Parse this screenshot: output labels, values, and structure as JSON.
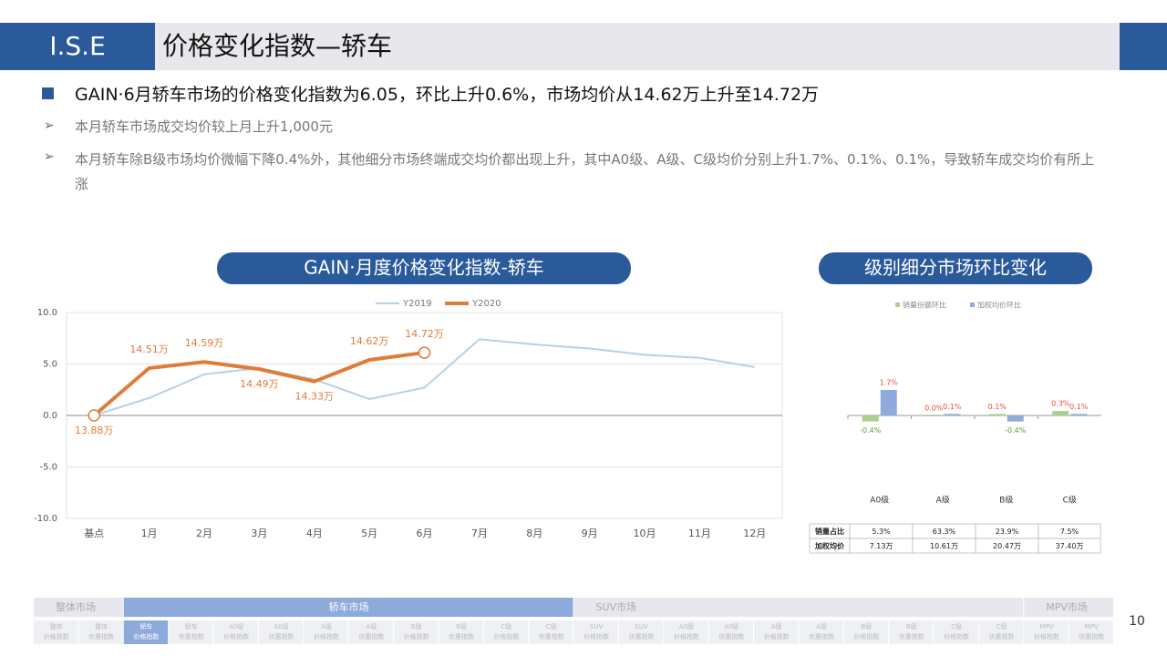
{
  "header": {
    "logo": "I.S.E",
    "title": "价格变化指数—轿车"
  },
  "bullets": {
    "main": "GAIN·6月轿车市场的价格变化指数为6.05，环比上升0.6%，市场均价从14.62万上升至14.72万",
    "subs": [
      "本月轿车市场成交均价较上月上升1,000元",
      "本月轿车除B级市场均价微幅下降0.4%外，其他细分市场终端成交均价都出现上升，其中A0级、A级、C级均价分别上升1.7%、0.1%、0.1%，导致轿车成交均价有所上涨"
    ]
  },
  "chart_data": [
    {
      "type": "line",
      "title": "GAIN·月度价格变化指数-轿车",
      "categories": [
        "基点",
        "1月",
        "2月",
        "3月",
        "4月",
        "5月",
        "6月",
        "7月",
        "8月",
        "9月",
        "10月",
        "11月",
        "12月"
      ],
      "series": [
        {
          "name": "Y2019",
          "color": "#b7d0e8",
          "values": [
            0,
            1.7,
            4.0,
            4.6,
            3.5,
            1.6,
            2.7,
            7.4,
            6.9,
            6.5,
            5.9,
            5.6,
            4.7
          ]
        },
        {
          "name": "Y2020",
          "color": "#e07b39",
          "values": [
            0,
            4.6,
            5.2,
            4.5,
            3.3,
            5.4,
            6.1,
            null,
            null,
            null,
            null,
            null,
            null
          ]
        }
      ],
      "annotations": [
        "13.88万",
        "14.51万",
        "14.59万",
        "14.49万",
        "14.33万",
        "14.62万",
        "14.72万"
      ],
      "ylim": [
        -10,
        10
      ],
      "yticks": [
        {
          "value": -10,
          "label": "-10.0"
        },
        {
          "value": -5,
          "label": "-5.0"
        },
        {
          "value": 0,
          "label": "0.0"
        },
        {
          "value": 5,
          "label": "5.0"
        },
        {
          "value": 10,
          "label": "10.0"
        }
      ],
      "grid": true,
      "legend": "top"
    },
    {
      "type": "bar",
      "title": "级别细分市场环比变化",
      "categories": [
        "A0级",
        "A级",
        "B级",
        "C级"
      ],
      "series": [
        {
          "name": "销量份额环比",
          "color": "#a9d18e",
          "values": [
            -0.4,
            0.0,
            0.1,
            0.3
          ],
          "value_labels": [
            "-0.4%",
            "0.0%",
            "0.1%",
            "0.3%"
          ]
        },
        {
          "name": "加权均价环比",
          "color": "#8faadc",
          "values": [
            1.7,
            0.1,
            -0.4,
            0.1
          ],
          "value_labels": [
            "1.7%",
            "0.1%",
            "-0.4%",
            "0.1%"
          ]
        }
      ],
      "ylim": [
        -5,
        7
      ],
      "legend": "top"
    }
  ],
  "table": {
    "rows": [
      [
        "销量占比",
        "5.3%",
        "63.3%",
        "23.9%",
        "7.5%"
      ],
      [
        "加权均价",
        "7.13万",
        "10.61万",
        "20.47万",
        "37.40万"
      ]
    ]
  },
  "nav": {
    "groups": [
      {
        "label": "整体市场",
        "span": 2
      },
      {
        "label": "轿车市场",
        "span": 10,
        "active": true
      },
      {
        "label": "SUV市场",
        "span": 10
      },
      {
        "label": "MPV市场",
        "span": 2
      }
    ],
    "items": [
      [
        "整体",
        "价格指数"
      ],
      [
        "整体",
        "优惠指数"
      ],
      [
        "轿车",
        "价格指数"
      ],
      [
        "轿车",
        "优惠指数"
      ],
      [
        "A0级",
        "价格指数"
      ],
      [
        "A0级",
        "优惠指数"
      ],
      [
        "A级",
        "价格指数"
      ],
      [
        "A级",
        "优惠指数"
      ],
      [
        "B级",
        "价格指数"
      ],
      [
        "B级",
        "优惠指数"
      ],
      [
        "C级",
        "价格指数"
      ],
      [
        "C级",
        "优惠指数"
      ],
      [
        "SUV",
        "价格指数"
      ],
      [
        "SUV",
        "优惠指数"
      ],
      [
        "A0级",
        "价格指数"
      ],
      [
        "A0级",
        "优惠指数"
      ],
      [
        "A级",
        "价格指数"
      ],
      [
        "A级",
        "优惠指数"
      ],
      [
        "B级",
        "价格指数"
      ],
      [
        "B级",
        "优惠指数"
      ],
      [
        "C级",
        "价格指数"
      ],
      [
        "C级",
        "优惠指数"
      ],
      [
        "MPV",
        "价格指数"
      ],
      [
        "MPV",
        "优惠指数"
      ]
    ],
    "active_item": 2
  },
  "page_number": "10"
}
